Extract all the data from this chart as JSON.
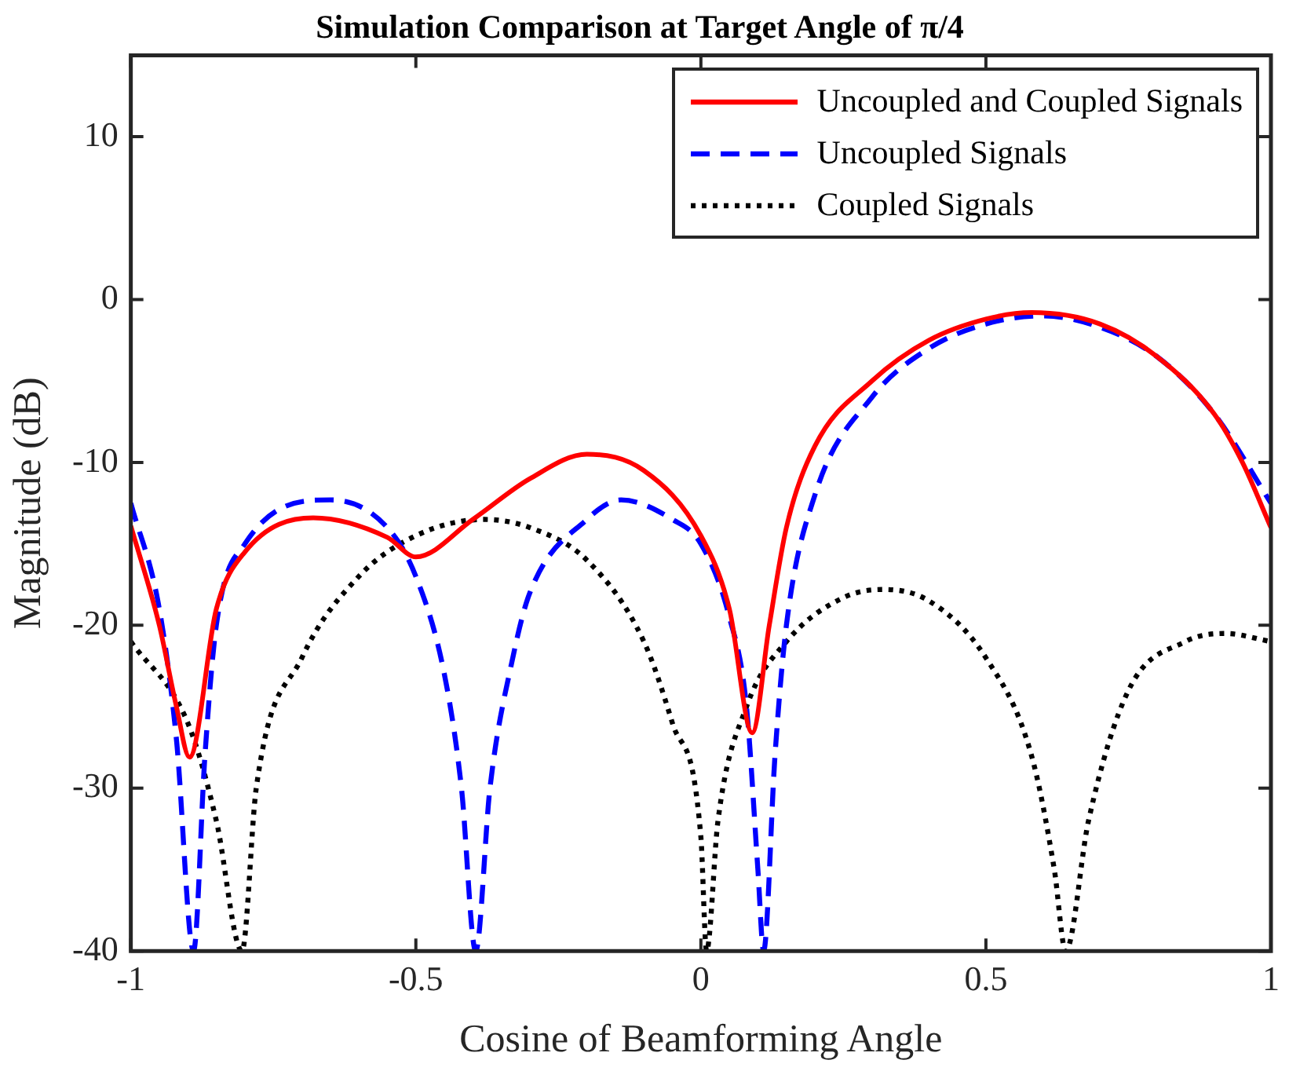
{
  "chart_data": {
    "type": "line",
    "title": "Simulation Comparison at Target Angle of π/4",
    "xlabel": "Cosine of Beamforming Angle",
    "ylabel": "Magnitude (dB)",
    "xlim": [
      -1,
      1
    ],
    "ylim": [
      -40,
      15
    ],
    "xticks": [
      -1,
      -0.5,
      0,
      0.5,
      1
    ],
    "yticks": [
      -40,
      -30,
      -20,
      -10,
      0,
      10
    ],
    "grid": false,
    "legend": "top right",
    "marker": "none",
    "series": [
      {
        "name": "Uncoupled and Coupled Signals",
        "color": "#ff0000",
        "line_style": "solid",
        "x": [
          -1,
          -0.95,
          -0.92,
          -0.897,
          -0.85,
          -0.8,
          -0.68,
          -0.55,
          -0.5,
          -0.4,
          -0.3,
          -0.2,
          -0.1,
          0,
          0.05,
          0.09,
          0.12,
          0.15,
          0.2,
          0.3,
          0.4,
          0.5,
          0.58,
          0.7,
          0.8,
          0.9,
          0.95,
          1
        ],
        "values": [
          -13.9,
          -20,
          -25,
          -28.1,
          -19,
          -15.5,
          -13.4,
          -14.6,
          -15.8,
          -13.5,
          -11,
          -9.5,
          -10.5,
          -14.5,
          -19,
          -26.6,
          -20,
          -14,
          -9,
          -5,
          -2.5,
          -1.2,
          -0.8,
          -1.5,
          -3.5,
          -7,
          -10,
          -14
        ]
      },
      {
        "name": "Uncoupled Signals",
        "color": "#0000ff",
        "line_style": "dashed",
        "x": [
          -1,
          -0.95,
          -0.92,
          -0.89,
          -0.87,
          -0.85,
          -0.8,
          -0.65,
          -0.55,
          -0.5,
          -0.45,
          -0.42,
          -0.395,
          -0.37,
          -0.33,
          -0.3,
          -0.2,
          -0.14,
          -0.05,
          0,
          0.05,
          0.08,
          0.1,
          0.11,
          0.13,
          0.15,
          0.2,
          0.3,
          0.4,
          0.5,
          0.6,
          0.7,
          0.8,
          0.9,
          1
        ],
        "values": [
          -12.5,
          -19,
          -27,
          -40,
          -28,
          -20,
          -15,
          -12.3,
          -14,
          -17,
          -23,
          -30,
          -40,
          -30,
          -22,
          -18,
          -13.5,
          -12.3,
          -13.5,
          -15,
          -19.5,
          -25,
          -35,
          -40,
          -28,
          -20,
          -12,
          -6,
          -3,
          -1.5,
          -1,
          -1.7,
          -3.5,
          -7,
          -12.5
        ]
      },
      {
        "name": "Coupled Signals",
        "color": "#000000",
        "line_style": "dotted",
        "x": [
          -1,
          -0.9,
          -0.85,
          -0.805,
          -0.78,
          -0.7,
          -0.6,
          -0.5,
          -0.38,
          -0.3,
          -0.2,
          -0.1,
          -0.05,
          0,
          0.01,
          0.03,
          0.08,
          0.15,
          0.25,
          0.32,
          0.4,
          0.5,
          0.58,
          0.62,
          0.64,
          0.68,
          0.75,
          0.85,
          0.92,
          1
        ],
        "values": [
          -21,
          -26,
          -32,
          -40,
          -30,
          -22,
          -17,
          -14.5,
          -13.5,
          -14,
          -16,
          -21,
          -26,
          -33,
          -40,
          -32,
          -25,
          -21,
          -18.3,
          -17.8,
          -18.5,
          -22,
          -28,
          -35,
          -40,
          -32,
          -24,
          -21,
          -20.5,
          -21
        ]
      }
    ]
  }
}
